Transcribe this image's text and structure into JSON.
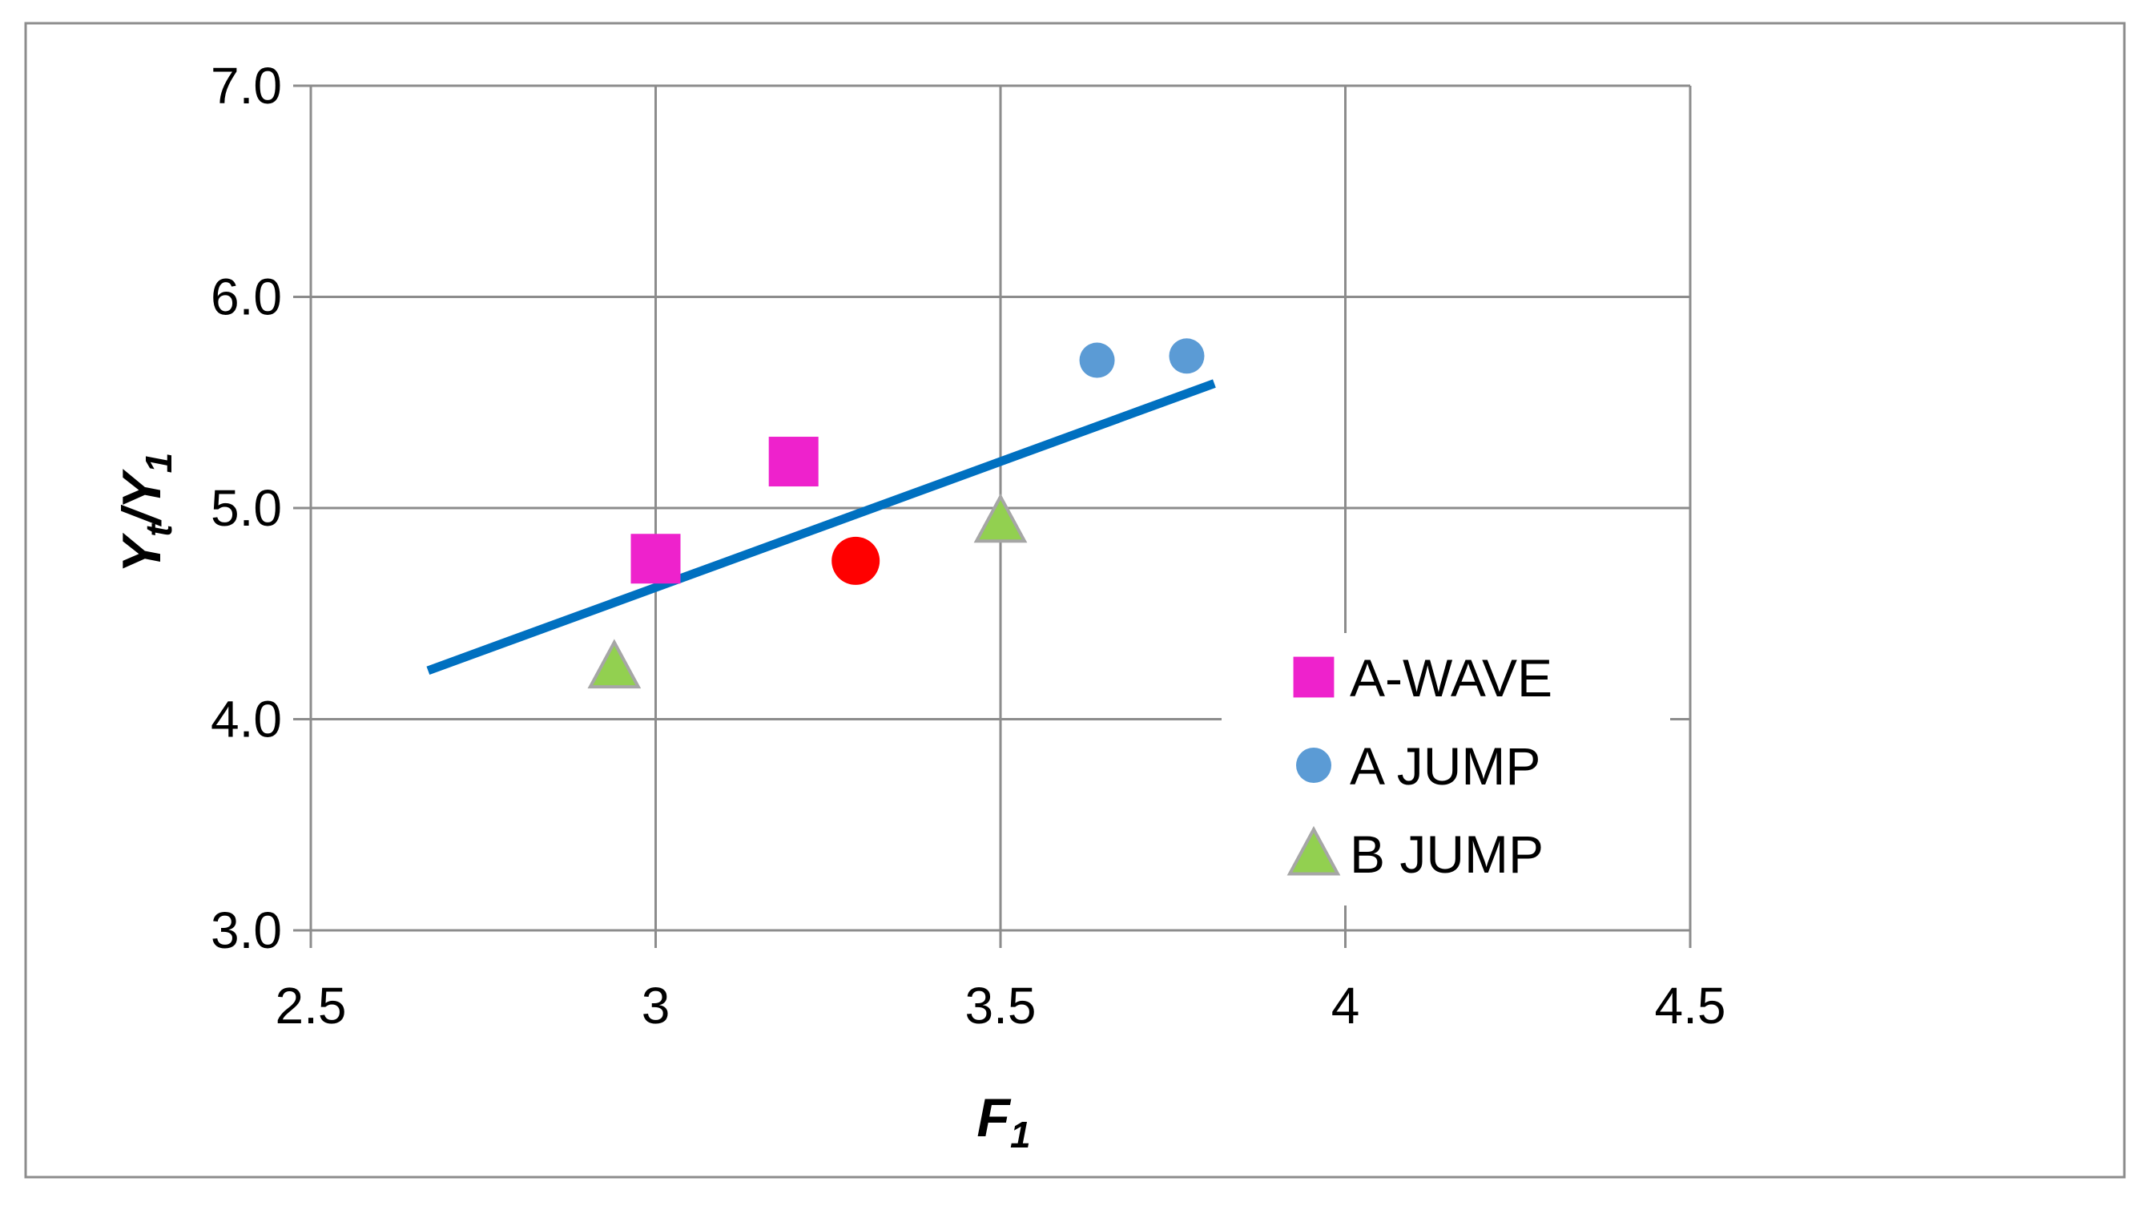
{
  "chart_data": {
    "type": "scatter",
    "xlabel": "F",
    "xlabel_sub": "1",
    "ylabel": "Y",
    "ylabel_sub1": "t",
    "ylabel_mid": "/Y",
    "ylabel_sub2": "1",
    "xlim": [
      2.5,
      4.5
    ],
    "ylim": [
      3.0,
      7.0
    ],
    "xticks": [
      2.5,
      3,
      3.5,
      4,
      4.5
    ],
    "xtick_labels": [
      "2.5",
      "3",
      "3.5",
      "4",
      "4.5"
    ],
    "yticks": [
      3.0,
      4.0,
      5.0,
      6.0,
      7.0
    ],
    "ytick_labels": [
      "3.0",
      "4.0",
      "5.0",
      "6.0",
      "7.0"
    ],
    "grid": true,
    "legend_position": "right",
    "series": [
      {
        "name": "A-WAVE",
        "marker": "square",
        "color": "#EE22CC",
        "points": [
          [
            3.0,
            4.76
          ],
          [
            3.2,
            5.22
          ]
        ]
      },
      {
        "name": "A JUMP",
        "marker": "circle",
        "color": "#5B9BD5",
        "points": [
          [
            3.64,
            5.7
          ],
          [
            3.77,
            5.72
          ]
        ]
      },
      {
        "name": "B JUMP",
        "marker": "triangle",
        "color": "#92D050",
        "points": [
          [
            2.94,
            4.25
          ],
          [
            3.5,
            4.94
          ]
        ]
      }
    ],
    "extra_points": [
      {
        "x": 3.29,
        "y": 4.75,
        "marker": "circle",
        "color": "#FF0000"
      }
    ],
    "trendline": {
      "color": "#0070C0",
      "x": [
        2.67,
        3.81
      ],
      "y": [
        4.23,
        5.59
      ]
    }
  }
}
